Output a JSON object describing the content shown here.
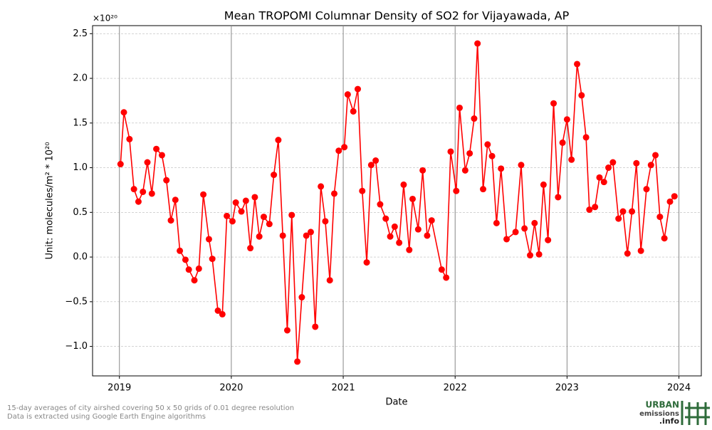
{
  "chart_data": {
    "type": "line",
    "title": "Mean TROPOMI Columnar Density of SO2 for Vijayawada, AP",
    "x_label": "Date",
    "y_label": "Unit: molecules/m² * 10²⁰",
    "y_offset_label": "×10²⁰",
    "annotations": [
      "15-day averages of city airshed covering 50 x 50 grids of 0.01 degree resolution",
      "Data is extracted using Google Earth Engine algorithms"
    ],
    "logo": [
      "URBAN",
      "emissions",
      ".info"
    ],
    "color": "#ff0000",
    "grid": true,
    "xlim": [
      2018.76,
      2024.2
    ],
    "xticks": [
      2019,
      2020,
      2021,
      2022,
      2023,
      2024
    ],
    "ylim": [
      -1.33,
      2.59
    ],
    "yticks": [
      {
        "value": -1.0,
        "label": "−1.0"
      },
      {
        "value": -0.5,
        "label": "−0.5"
      },
      {
        "value": 0.0,
        "label": "0.0"
      },
      {
        "value": 0.5,
        "label": "0.5"
      },
      {
        "value": 1.0,
        "label": "1.0"
      },
      {
        "value": 1.5,
        "label": "1.5"
      },
      {
        "value": 2.0,
        "label": "2.0"
      },
      {
        "value": 2.5,
        "label": "2.5"
      }
    ],
    "x": [
      2019.01,
      2019.04,
      2019.09,
      2019.13,
      2019.17,
      2019.21,
      2019.25,
      2019.29,
      2019.33,
      2019.38,
      2019.42,
      2019.46,
      2019.5,
      2019.54,
      2019.59,
      2019.62,
      2019.67,
      2019.71,
      2019.75,
      2019.8,
      2019.83,
      2019.88,
      2019.92,
      2019.96,
      2020.01,
      2020.04,
      2020.09,
      2020.13,
      2020.17,
      2020.21,
      2020.25,
      2020.29,
      2020.34,
      2020.38,
      2020.42,
      2020.46,
      2020.5,
      2020.54,
      2020.59,
      2020.63,
      2020.67,
      2020.71,
      2020.75,
      2020.8,
      2020.84,
      2020.88,
      2020.92,
      2020.96,
      2021.01,
      2021.04,
      2021.09,
      2021.13,
      2021.17,
      2021.21,
      2021.25,
      2021.29,
      2021.33,
      2021.38,
      2021.42,
      2021.46,
      2021.5,
      2021.54,
      2021.59,
      2021.62,
      2021.67,
      2021.71,
      2021.75,
      2021.79,
      2021.88,
      2021.92,
      2021.96,
      2022.01,
      2022.04,
      2022.09,
      2022.13,
      2022.17,
      2022.2,
      2022.25,
      2022.29,
      2022.33,
      2022.37,
      2022.41,
      2022.46,
      2022.54,
      2022.59,
      2022.62,
      2022.67,
      2022.71,
      2022.75,
      2022.79,
      2022.83,
      2022.88,
      2022.92,
      2022.96,
      2023.0,
      2023.04,
      2023.09,
      2023.13,
      2023.17,
      2023.2,
      2023.25,
      2023.29,
      2023.33,
      2023.37,
      2023.41,
      2023.46,
      2023.5,
      2023.54,
      2023.58,
      2023.62,
      2023.66,
      2023.71,
      2023.75,
      2023.79,
      2023.83,
      2023.87,
      2023.92,
      2023.96
    ],
    "values": [
      1.04,
      1.62,
      1.32,
      0.76,
      0.62,
      0.73,
      1.06,
      0.71,
      1.21,
      1.14,
      0.86,
      0.41,
      0.64,
      0.07,
      -0.03,
      -0.14,
      -0.26,
      -0.13,
      0.7,
      0.2,
      -0.02,
      -0.6,
      -0.64,
      0.46,
      0.4,
      0.61,
      0.51,
      0.63,
      0.1,
      0.67,
      0.23,
      0.45,
      0.37,
      0.92,
      1.31,
      0.24,
      -0.82,
      0.47,
      -1.17,
      -0.45,
      0.24,
      0.28,
      -0.78,
      0.79,
      0.4,
      -0.26,
      0.71,
      1.19,
      1.23,
      1.82,
      1.63,
      1.88,
      0.74,
      -0.06,
      1.03,
      1.08,
      0.59,
      0.43,
      0.23,
      0.34,
      0.16,
      0.81,
      0.08,
      0.65,
      0.31,
      0.97,
      0.24,
      0.41,
      -0.14,
      -0.23,
      1.18,
      0.74,
      1.67,
      0.97,
      1.16,
      1.55,
      2.39,
      0.76,
      1.26,
      1.13,
      0.38,
      0.99,
      0.2,
      0.28,
      1.03,
      0.32,
      0.02,
      0.38,
      0.03,
      0.81,
      0.19,
      1.72,
      0.67,
      1.28,
      1.54,
      1.09,
      2.16,
      1.81,
      1.34,
      0.53,
      0.56,
      0.89,
      0.84,
      1.0,
      1.06,
      0.43,
      0.51,
      0.04,
      0.51,
      1.05,
      0.07,
      0.76,
      1.03,
      1.14,
      0.45,
      0.21,
      0.62,
      0.68
    ]
  }
}
